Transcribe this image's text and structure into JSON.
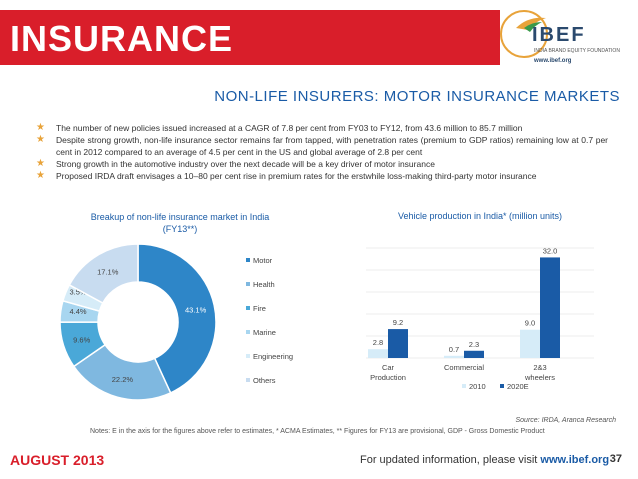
{
  "header": {
    "title": "INSURANCE",
    "logo_text": "IBEF",
    "logo_sub": "INDIA BRAND EQUITY FOUNDATION",
    "logo_url": "www.ibef.org",
    "accent_color": "#d91e2a"
  },
  "subtitle": "NON-LIFE INSURERS: MOTOR INSURANCE MARKETS",
  "bullets": [
    "The number of new policies issued increased at a CAGR of 7.8 per cent from FY03 to FY12, from 43.6 million to 85.7 million",
    "Despite strong growth, non-life insurance sector remains far from tapped, with penetration rates (premium to GDP ratios) remaining low at 0.7 per cent in 2012 compared to an average of 4.5 per cent in the US and global average of 2.8 per cent",
    "Strong growth in the automotive industry over the next decade will be a key driver of motor insurance",
    "Proposed IRDA draft envisages a 10–80 per cent rise in premium rates for the erstwhile loss-making third-party motor insurance"
  ],
  "chart_data": [
    {
      "type": "pie",
      "title": "Breakup of non-life insurance market in India (FY13**)",
      "title_line1": "Breakup of non-life insurance market in India",
      "title_line2": "(FY13**)",
      "labels": [
        "Motor",
        "Health",
        "Fire",
        "Marine",
        "Engineering",
        "Others"
      ],
      "values": [
        43.1,
        22.2,
        9.6,
        4.4,
        3.5,
        17.1
      ],
      "value_labels": [
        "43.1%",
        "22.2%",
        "9.6%",
        "4.4%",
        "3.5%",
        "17.1%"
      ],
      "colors": [
        "#2e86c8",
        "#7fb8e0",
        "#4aa8d8",
        "#a8d6f0",
        "#d6ecf8",
        "#c8dcf0"
      ],
      "legend_position": "right"
    },
    {
      "type": "bar",
      "title": "Vehicle production in India* (million units)",
      "categories": [
        "Car\nProduction",
        "Commercial",
        "2&3\nwheelers"
      ],
      "category_lines": [
        [
          "Car",
          "Production"
        ],
        [
          "Commercial"
        ],
        [
          "2&3",
          "wheelers"
        ]
      ],
      "series": [
        {
          "name": "2010",
          "values": [
            2.8,
            0.7,
            9.0
          ],
          "labels": [
            "2.8",
            "0.7",
            "9.0"
          ],
          "color": "#d6ecf8"
        },
        {
          "name": "2020E",
          "values": [
            9.2,
            2.3,
            32.0
          ],
          "labels": [
            "9.2",
            "2.3",
            "32.0"
          ],
          "color": "#1a5ba6"
        }
      ],
      "ylim": [
        0,
        35
      ],
      "grid": true,
      "legend_position": "bottom"
    }
  ],
  "source_label": "Source:",
  "source_text": "IRDA, Aranca Research",
  "notes": "Notes: E in the axis for the figures above refer to estimates, * ACMA Estimates, ** Figures for FY13 are provisional, GDP - Gross Domestic Product",
  "footer": {
    "date": "AUGUST 2013",
    "info_prefix": "For updated information, please visit",
    "info_url": "www.ibef.org",
    "page": "37"
  }
}
